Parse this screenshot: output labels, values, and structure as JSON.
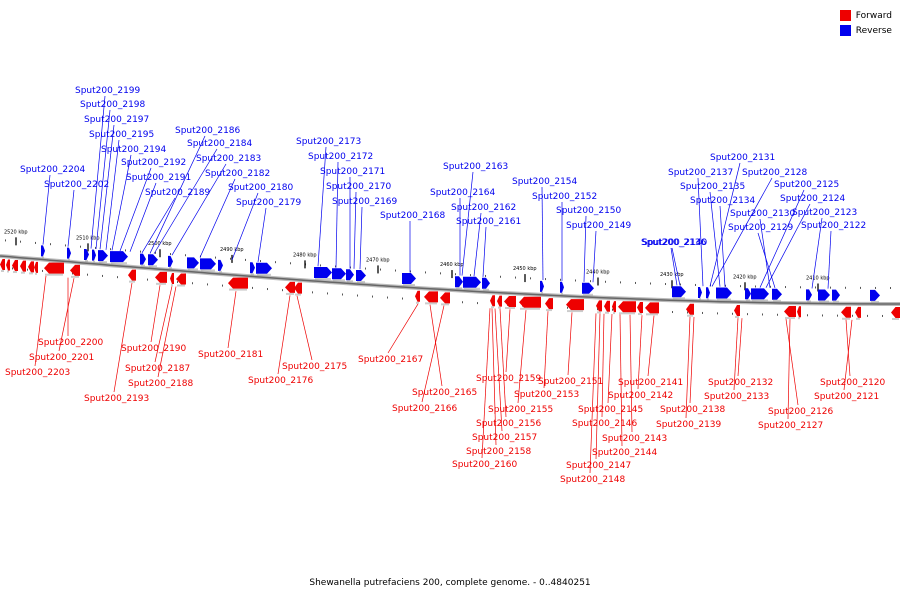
{
  "colors": {
    "forward": "#ee0000",
    "reverse": "#0000ee",
    "backbone": "#888888"
  },
  "legend": {
    "forward_label": "Forward",
    "reverse_label": "Reverse"
  },
  "caption": "Shewanella putrefaciens 200, complete genome. - 0..4840251",
  "ticks": [
    "2520 kbp",
    "2510 kbp",
    "2500 kbp",
    "2490 kbp",
    "2480 kbp",
    "2470 kbp",
    "2460 kbp",
    "2450 kbp",
    "2440 kbp",
    "2430 kbp",
    "2420 kbp",
    "2410 kbp"
  ],
  "reverse_labels": [
    "Sput200_2199",
    "Sput200_2198",
    "Sput200_2197",
    "Sput200_2195",
    "Sput200_2194",
    "Sput200_2192",
    "Sput200_2191",
    "Sput200_2189",
    "Sput200_2204",
    "Sput200_2202",
    "Sput200_2186",
    "Sput200_2184",
    "Sput200_2183",
    "Sput200_2182",
    "Sput200_2180",
    "Sput200_2179",
    "Sput200_2173",
    "Sput200_2172",
    "Sput200_2171",
    "Sput200_2170",
    "Sput200_2169",
    "Sput200_2168",
    "Sput200_2163",
    "Sput200_2164",
    "Sput200_2162",
    "Sput200_2161",
    "Sput200_2154",
    "Sput200_2152",
    "Sput200_2150",
    "Sput200_2149",
    "Sput200_2136",
    "Sput200_2131",
    "Sput200_2137",
    "Sput200_2128",
    "Sput200_2135",
    "Sput200_2125",
    "Sput200_2134",
    "Sput200_2124",
    "Sput200_2130",
    "Sput200_2123",
    "Sput200_2129",
    "Sput200_2122",
    "Sput200_2140"
  ],
  "forward_labels": [
    "Sput200_2200",
    "Sput200_2201",
    "Sput200_2203",
    "Sput200_2190",
    "Sput200_2187",
    "Sput200_2188",
    "Sput200_2193",
    "Sput200_2181",
    "Sput200_2175",
    "Sput200_2176",
    "Sput200_2167",
    "Sput200_2165",
    "Sput200_2166",
    "Sput200_2159",
    "Sput200_2155",
    "Sput200_2156",
    "Sput200_2157",
    "Sput200_2158",
    "Sput200_2160",
    "Sput200_2151",
    "Sput200_2153",
    "Sput200_2141",
    "Sput200_2142",
    "Sput200_2145",
    "Sput200_2146",
    "Sput200_2143",
    "Sput200_2144",
    "Sput200_2147",
    "Sput200_2148",
    "Sput200_2138",
    "Sput200_2139",
    "Sput200_2132",
    "Sput200_2133",
    "Sput200_2126",
    "Sput200_2127",
    "Sput200_2120",
    "Sput200_2121"
  ]
}
